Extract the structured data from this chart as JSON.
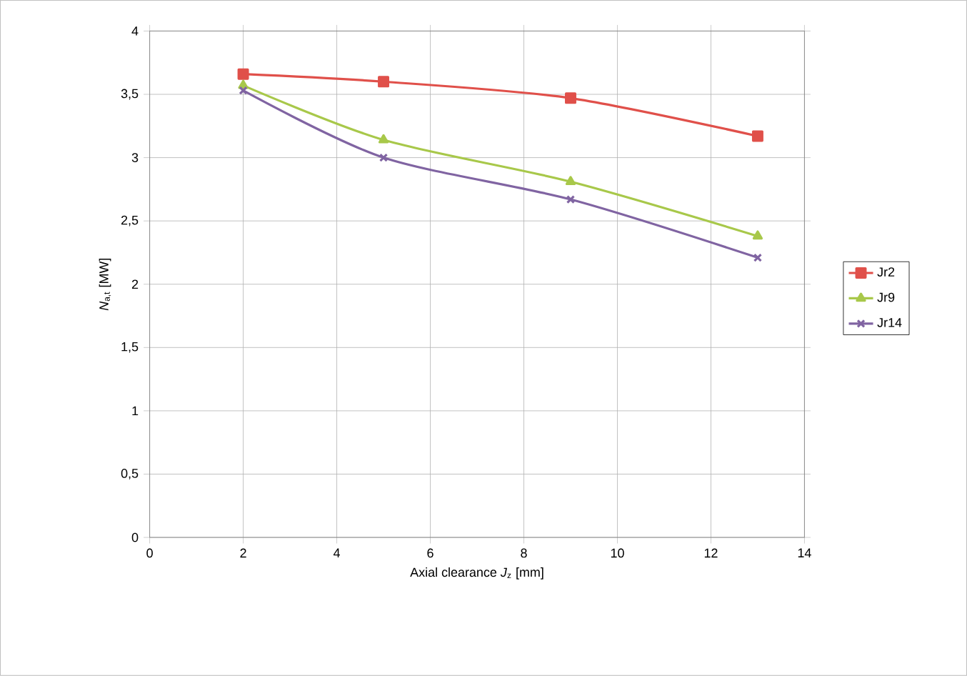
{
  "chart_data": {
    "type": "line",
    "xlabel": "Axial clearance *J*$_{z}$  [mm]",
    "ylabel": "*N*$_{a,t}$  [MW]",
    "xlim": [
      0,
      14
    ],
    "xticks": [
      0,
      2,
      4,
      6,
      8,
      10,
      12,
      14
    ],
    "ylim": [
      0,
      4
    ],
    "yticks": [
      0,
      {
        "value": 0.5,
        "label": "0,5"
      },
      1,
      {
        "value": 1.5,
        "label": "1,5"
      },
      2,
      {
        "value": 2.5,
        "label": "2,5"
      },
      3,
      {
        "value": 3.5,
        "label": "3,5"
      },
      4
    ],
    "grid": true,
    "legend": "right",
    "series": [
      {
        "name": "Jr2",
        "color": "#e0504a",
        "marker": "square",
        "x": [
          2,
          5,
          9,
          13
        ],
        "values": [
          3.66,
          3.6,
          3.47,
          3.17
        ]
      },
      {
        "name": "Jr9",
        "color": "#a8c84a",
        "marker": "triangle",
        "x": [
          2,
          5,
          9,
          13
        ],
        "values": [
          3.57,
          3.14,
          2.81,
          2.38
        ]
      },
      {
        "name": "Jr14",
        "color": "#8064a2",
        "marker": "cross",
        "x": [
          2,
          5,
          9,
          13
        ],
        "values": [
          3.53,
          3.0,
          2.67,
          2.21
        ]
      }
    ]
  }
}
